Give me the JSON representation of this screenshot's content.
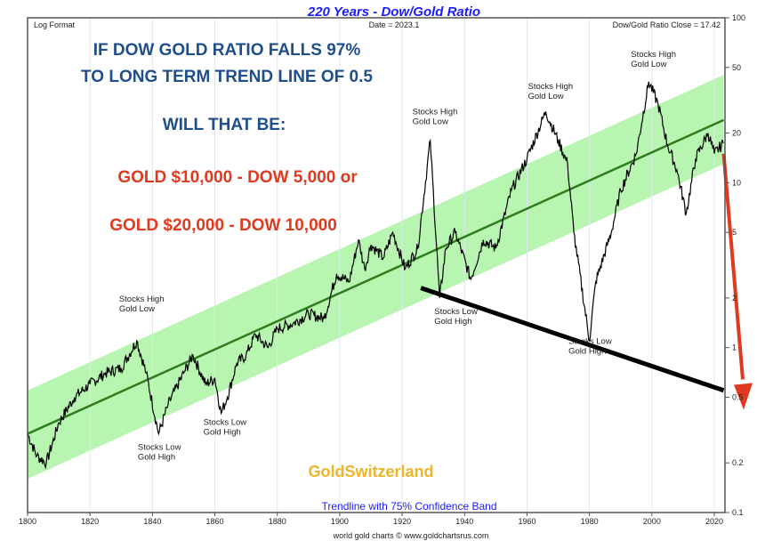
{
  "chart_data": {
    "type": "line",
    "title": "220 Years - Dow/Gold Ratio",
    "header_left": "Log Format",
    "header_center": "Date = 2023.1",
    "header_right": "Dow/Gold Ratio Close = 17.42",
    "footer": "world gold charts © www.goldchartsrus.com",
    "band_label": "Trendline with 75% Confidence Band",
    "watermark": "GoldSwitzerland",
    "y_scale": "log",
    "ylim": [
      0.1,
      100
    ],
    "xlim": [
      1800,
      2024
    ],
    "y_ticks": [
      100,
      50,
      20,
      10,
      5,
      2,
      1,
      0.5,
      0.2,
      0.1
    ],
    "y_tick_labels": [
      "100",
      "50",
      "20",
      "10",
      "5",
      "2",
      "1",
      "0.5",
      "0.2",
      "0.1"
    ],
    "x_ticks": [
      1800,
      1820,
      1840,
      1860,
      1880,
      1900,
      1920,
      1940,
      1960,
      1980,
      2000,
      2020
    ],
    "x_tick_labels": [
      "1800",
      "1820",
      "1840",
      "1860",
      "1880",
      "1900",
      "1920",
      "1940",
      "1960",
      "1980",
      "2000",
      "2020"
    ],
    "grid": "vertical",
    "colors": {
      "series": "#000000",
      "trend": "#2e7d1e",
      "band": "#b8f5b0",
      "title": "#1a1aff",
      "headline": "#1f4e8c",
      "scenario": "#e03a1e",
      "watermark": "#f0b429",
      "arrow": "#e03a1e"
    },
    "series": {
      "x": [
        1800,
        1803,
        1806,
        1810,
        1815,
        1820,
        1825,
        1830,
        1835,
        1838,
        1842,
        1845,
        1850,
        1853,
        1857,
        1860,
        1862,
        1864,
        1867,
        1870,
        1873,
        1877,
        1880,
        1885,
        1890,
        1895,
        1899,
        1903,
        1906,
        1908,
        1910,
        1914,
        1917,
        1921,
        1925,
        1929,
        1932,
        1934,
        1937,
        1942,
        1946,
        1950,
        1955,
        1960,
        1966,
        1970,
        1973,
        1975,
        1980,
        1982,
        1987,
        1990,
        1995,
        1999,
        2002,
        2005,
        2008,
        2011,
        2014,
        2018,
        2020,
        2023
      ],
      "y": [
        0.3,
        0.22,
        0.2,
        0.35,
        0.5,
        0.6,
        0.7,
        0.75,
        1.1,
        0.7,
        0.3,
        0.45,
        0.7,
        0.9,
        0.6,
        0.65,
        0.4,
        0.5,
        0.8,
        0.9,
        1.2,
        1.0,
        1.3,
        1.4,
        1.6,
        1.5,
        2.8,
        2.5,
        4.5,
        3.0,
        4.2,
        3.5,
        5.0,
        3.0,
        4.0,
        18,
        2.0,
        4.0,
        5.0,
        2.6,
        4.5,
        4.0,
        9,
        14,
        27,
        18,
        13,
        5,
        1.1,
        2.5,
        5,
        9,
        15,
        41,
        30,
        17,
        12,
        6.5,
        14,
        20,
        15,
        17.42
      ]
    },
    "trendline": {
      "x": [
        1800,
        2023
      ],
      "y": [
        0.3,
        24
      ]
    },
    "band_upper": {
      "x": [
        1800,
        2023
      ],
      "y": [
        0.55,
        45
      ]
    },
    "band_lower": {
      "x": [
        1800,
        2023
      ],
      "y": [
        0.16,
        13
      ]
    },
    "support_line": {
      "x": [
        1926,
        2023
      ],
      "y": [
        2.3,
        0.55
      ]
    },
    "annotations": [
      {
        "x": 1835,
        "y": 1.9,
        "lines": [
          "Stocks High",
          "Gold Low"
        ]
      },
      {
        "x": 1929,
        "y": 26,
        "lines": [
          "Stocks High",
          "Gold Low"
        ]
      },
      {
        "x": 1966,
        "y": 37,
        "lines": [
          "Stocks High",
          "Gold Low"
        ]
      },
      {
        "x": 1999,
        "y": 58,
        "lines": [
          "Stocks High",
          "Gold Low"
        ]
      },
      {
        "x": 1841,
        "y": 0.24,
        "lines": [
          "Stocks Low",
          "Gold High"
        ]
      },
      {
        "x": 1862,
        "y": 0.34,
        "lines": [
          "Stocks Low",
          "Gold High"
        ]
      },
      {
        "x": 1936,
        "y": 1.6,
        "lines": [
          "Stocks Low",
          "Gold High"
        ]
      },
      {
        "x": 1979,
        "y": 1.05,
        "lines": [
          "Stocks Low",
          "Gold High"
        ]
      }
    ],
    "headline": [
      "IF DOW GOLD RATIO FALLS 97%",
      "TO LONG TERM TREND LINE  OF 0.5",
      "WILL THAT BE:"
    ],
    "scenarios": [
      "GOLD $10,000 - DOW 5,000 or",
      "GOLD $20,000 - DOW 10,000"
    ]
  }
}
